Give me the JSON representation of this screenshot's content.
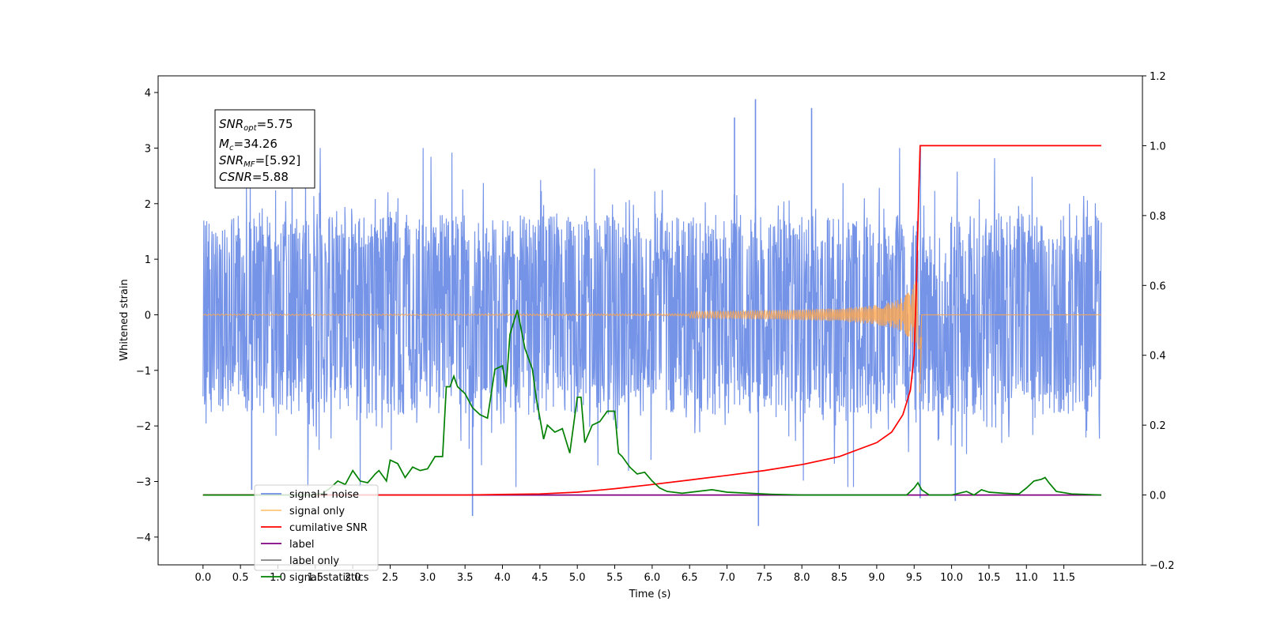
{
  "chart_data": {
    "type": "line",
    "title": "",
    "xlabel": "Time (s)",
    "ylabel": "Whitened strain",
    "ylabel_right": "",
    "xlim": [
      -0.6,
      12.55
    ],
    "ylim": [
      -4.5,
      4.3
    ],
    "ylim_right": [
      -0.2,
      1.2
    ],
    "x_ticks": [
      0.0,
      0.5,
      1.0,
      1.5,
      2.0,
      2.5,
      3.0,
      3.5,
      4.0,
      4.5,
      5.0,
      5.5,
      6.0,
      6.5,
      7.0,
      7.5,
      8.0,
      8.5,
      9.0,
      9.5,
      10.0,
      10.5,
      11.0,
      11.5
    ],
    "x_tick_labels": [
      "0.0",
      "0.5",
      "1.0",
      "1.5",
      "2.0",
      "2.5",
      "3.0",
      "3.5",
      "4.0",
      "4.5",
      "5.0",
      "5.5",
      "6.0",
      "6.5",
      "7.0",
      "7.5",
      "8.0",
      "8.5",
      "9.0",
      "9.5",
      "10.0",
      "10.5",
      "11.0",
      "11.5"
    ],
    "y_ticks": [
      -4,
      -3,
      -2,
      -1,
      0,
      1,
      2,
      3,
      4
    ],
    "y_tick_labels": [
      "−4",
      "−3",
      "−2",
      "−1",
      "0",
      "1",
      "2",
      "3",
      "4"
    ],
    "y_ticks_right": [
      -0.2,
      0.0,
      0.2,
      0.4,
      0.6,
      0.8,
      1.0,
      1.2
    ],
    "y_tick_labels_right": [
      "−0.2",
      "0.0",
      "0.2",
      "0.4",
      "0.6",
      "0.8",
      "1.0",
      "1.2"
    ],
    "grid": false,
    "legend_placement": "lower-left",
    "annotation": {
      "lines": [
        {
          "main": "SNR",
          "sub": "opt",
          "rest": "=5.75"
        },
        {
          "main": "M",
          "sub": "c",
          "rest": "=34.26"
        },
        {
          "main": "SNR",
          "sub": "MF",
          "rest": "=[5.92]"
        },
        {
          "main": "CSNR",
          "sub": "",
          "rest": "=5.88"
        }
      ]
    },
    "series": [
      {
        "name": "signal+ noise",
        "color": "#6f8ee6",
        "axis": "left",
        "x_range": [
          0.0,
          12.0
        ],
        "envelope_typical": [
          -1.9,
          2.1
        ],
        "peaks": [
          {
            "x": 7.38,
            "y": 3.88
          },
          {
            "x": 8.13,
            "y": 3.72
          },
          {
            "x": 7.1,
            "y": 3.55
          },
          {
            "x": 7.42,
            "y": -3.8
          },
          {
            "x": 3.6,
            "y": -3.62
          },
          {
            "x": 9.58,
            "y": -3.3
          },
          {
            "x": 10.05,
            "y": -3.35
          },
          {
            "x": 0.65,
            "y": -3.15
          }
        ]
      },
      {
        "name": "signal only",
        "color": "#ffa64d",
        "axis": "left",
        "description_points": [
          [
            0.0,
            0.0
          ],
          [
            8.0,
            0.05
          ],
          [
            9.0,
            0.15
          ],
          [
            9.4,
            0.45
          ],
          [
            9.55,
            0.6
          ],
          [
            9.58,
            -1.4
          ],
          [
            9.6,
            0.0
          ],
          [
            12.0,
            0.0
          ]
        ]
      },
      {
        "name": "cumilative SNR",
        "color": "#ff0000",
        "axis": "right",
        "points": [
          [
            0.0,
            0.0
          ],
          [
            3.5,
            0.0
          ],
          [
            4.5,
            0.003
          ],
          [
            5.0,
            0.008
          ],
          [
            5.5,
            0.018
          ],
          [
            6.0,
            0.03
          ],
          [
            6.5,
            0.043
          ],
          [
            7.0,
            0.056
          ],
          [
            7.5,
            0.07
          ],
          [
            8.0,
            0.087
          ],
          [
            8.5,
            0.11
          ],
          [
            9.0,
            0.15
          ],
          [
            9.2,
            0.18
          ],
          [
            9.35,
            0.23
          ],
          [
            9.45,
            0.3
          ],
          [
            9.5,
            0.4
          ],
          [
            9.53,
            0.6
          ],
          [
            9.56,
            0.85
          ],
          [
            9.58,
            1.0
          ],
          [
            12.0,
            1.0
          ]
        ]
      },
      {
        "name": "label",
        "color": "#800080",
        "axis": "right",
        "points": [
          [
            0.0,
            0.0
          ],
          [
            12.0,
            0.0
          ]
        ]
      },
      {
        "name": "label only",
        "color": "#808080",
        "axis": "right",
        "points": []
      },
      {
        "name": "signal statistics",
        "color": "#008000",
        "axis": "right",
        "points": [
          [
            0.0,
            0.0
          ],
          [
            1.45,
            0.0
          ],
          [
            1.6,
            0.005
          ],
          [
            1.7,
            0.02
          ],
          [
            1.8,
            0.04
          ],
          [
            1.9,
            0.03
          ],
          [
            2.0,
            0.07
          ],
          [
            2.1,
            0.04
          ],
          [
            2.2,
            0.035
          ],
          [
            2.3,
            0.06
          ],
          [
            2.35,
            0.07
          ],
          [
            2.45,
            0.04
          ],
          [
            2.5,
            0.1
          ],
          [
            2.6,
            0.09
          ],
          [
            2.7,
            0.05
          ],
          [
            2.8,
            0.08
          ],
          [
            2.9,
            0.07
          ],
          [
            3.0,
            0.075
          ],
          [
            3.1,
            0.11
          ],
          [
            3.2,
            0.11
          ],
          [
            3.25,
            0.31
          ],
          [
            3.3,
            0.31
          ],
          [
            3.35,
            0.34
          ],
          [
            3.4,
            0.31
          ],
          [
            3.5,
            0.29
          ],
          [
            3.6,
            0.25
          ],
          [
            3.7,
            0.23
          ],
          [
            3.8,
            0.22
          ],
          [
            3.9,
            0.36
          ],
          [
            4.0,
            0.37
          ],
          [
            4.05,
            0.31
          ],
          [
            4.1,
            0.46
          ],
          [
            4.2,
            0.53
          ],
          [
            4.3,
            0.42
          ],
          [
            4.4,
            0.36
          ],
          [
            4.45,
            0.28
          ],
          [
            4.5,
            0.22
          ],
          [
            4.55,
            0.16
          ],
          [
            4.6,
            0.2
          ],
          [
            4.7,
            0.18
          ],
          [
            4.8,
            0.19
          ],
          [
            4.9,
            0.12
          ],
          [
            5.0,
            0.28
          ],
          [
            5.05,
            0.28
          ],
          [
            5.1,
            0.15
          ],
          [
            5.2,
            0.2
          ],
          [
            5.3,
            0.21
          ],
          [
            5.4,
            0.24
          ],
          [
            5.5,
            0.24
          ],
          [
            5.55,
            0.12
          ],
          [
            5.6,
            0.11
          ],
          [
            5.7,
            0.08
          ],
          [
            5.8,
            0.06
          ],
          [
            5.9,
            0.065
          ],
          [
            6.0,
            0.04
          ],
          [
            6.1,
            0.02
          ],
          [
            6.2,
            0.01
          ],
          [
            6.4,
            0.005
          ],
          [
            6.6,
            0.01
          ],
          [
            6.8,
            0.015
          ],
          [
            7.0,
            0.008
          ],
          [
            7.3,
            0.005
          ],
          [
            7.6,
            0.002
          ],
          [
            8.0,
            0.0
          ],
          [
            9.4,
            0.0
          ],
          [
            9.5,
            0.02
          ],
          [
            9.55,
            0.035
          ],
          [
            9.6,
            0.015
          ],
          [
            9.7,
            0.0
          ],
          [
            10.0,
            0.0
          ],
          [
            10.2,
            0.01
          ],
          [
            10.3,
            0.0
          ],
          [
            10.4,
            0.015
          ],
          [
            10.5,
            0.008
          ],
          [
            10.7,
            0.005
          ],
          [
            10.9,
            0.003
          ],
          [
            11.0,
            0.02
          ],
          [
            11.1,
            0.04
          ],
          [
            11.2,
            0.045
          ],
          [
            11.25,
            0.05
          ],
          [
            11.3,
            0.035
          ],
          [
            11.4,
            0.01
          ],
          [
            11.6,
            0.003
          ],
          [
            12.0,
            0.0
          ]
        ]
      }
    ],
    "legend_entries": [
      {
        "label": "signal+ noise",
        "color": "#6f8ee6"
      },
      {
        "label": "signal only",
        "color": "#ffc478"
      },
      {
        "label": "cumilative SNR",
        "color": "#ff0000"
      },
      {
        "label": "label",
        "color": "#800080"
      },
      {
        "label": "label only",
        "color": "#808080"
      },
      {
        "label": "signal statistics",
        "color": "#008000"
      }
    ]
  }
}
